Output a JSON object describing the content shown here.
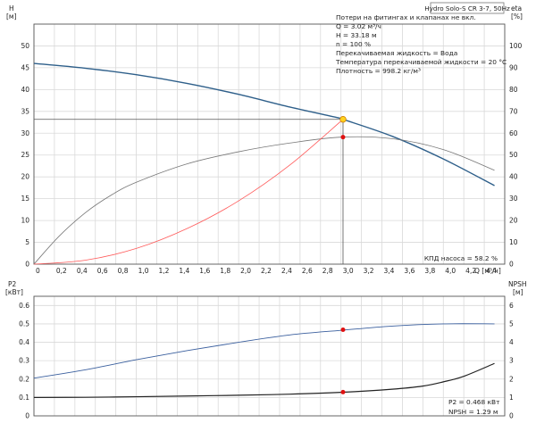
{
  "chart_data": [
    {
      "type": "line",
      "title": "Hydro Solo-S CR 3-7, 50Hz",
      "xlabel": "Q [м³/ч]",
      "ylabel_left": [
        "H",
        "[м]"
      ],
      "ylabel_right": [
        "eta",
        "[%]"
      ],
      "xlim": [
        0,
        4.6
      ],
      "ylim_left": [
        0,
        55
      ],
      "ylim_right": [
        0,
        110
      ],
      "x_ticks": [
        "0",
        "0,2",
        "0,4",
        "0,6",
        "0,8",
        "1,0",
        "1,2",
        "1,4",
        "1,6",
        "1,8",
        "2,0",
        "2,2",
        "2,4",
        "2,6",
        "2,8",
        "3,0",
        "3,2",
        "3,4",
        "3,6",
        "3,8",
        "4,0",
        "4,2",
        "4,4"
      ],
      "y_ticks_left": [
        "0",
        "5",
        "10",
        "15",
        "20",
        "25",
        "30",
        "35",
        "40",
        "45",
        "50"
      ],
      "y_ticks_right": [
        "0",
        "10",
        "20",
        "30",
        "40",
        "50",
        "60",
        "70",
        "80",
        "90",
        "100"
      ],
      "grid": true,
      "series": [
        {
          "role": "H",
          "color": "#2e5f8a",
          "x": [
            0,
            0.5,
            1.0,
            1.5,
            2.0,
            2.5,
            3.0,
            3.02,
            3.5,
            4.0,
            4.5
          ],
          "y": [
            46.0,
            44.9,
            43.4,
            41.4,
            38.9,
            36.0,
            33.4,
            33.18,
            29.3,
            24.1,
            18.0
          ]
        },
        {
          "role": "eta",
          "axis": "right",
          "color": "#777777",
          "x": [
            0,
            0.25,
            0.5,
            0.75,
            1.0,
            1.5,
            2.0,
            2.5,
            3.0,
            3.5,
            4.0,
            4.5
          ],
          "y": [
            0,
            13,
            23.5,
            31.5,
            37.5,
            46,
            51.5,
            55.5,
            58.2,
            57.5,
            52.5,
            43
          ]
        },
        {
          "role": "system",
          "color": "#ff5a5a",
          "x": [
            0,
            0.5,
            1.0,
            1.5,
            2.0,
            2.5,
            3.02
          ],
          "y": [
            0,
            0.9,
            3.6,
            8.2,
            14.5,
            22.7,
            33.18
          ]
        }
      ],
      "duty_point": {
        "x": 3.02,
        "y": 33.18,
        "eta": 58.2
      },
      "info": [
        "Потери на фитингах и клапанах не вкл.",
        "Q = 3.02 м³/ч",
        "H = 33.18 м",
        "n = 100 %",
        "Перекачиваемая жидкость = Вода",
        "Температура перекачиваемой жидкости = 20 °C",
        "Плотность = 998.2 кг/м³"
      ],
      "eff_label": "КПД насоса = 58.2 %"
    },
    {
      "type": "line",
      "xlim": [
        0,
        4.6
      ],
      "ylim_left": [
        0,
        0.65
      ],
      "ylim_right": [
        0,
        6.5
      ],
      "ylabel_left": [
        "P2",
        "[кВт]"
      ],
      "ylabel_right": [
        "NPSH",
        "[м]"
      ],
      "y_ticks_left": [
        "0",
        "0.1",
        "0.2",
        "0.3",
        "0.4",
        "0.5",
        "0.6"
      ],
      "y_ticks_right": [
        "0",
        "1",
        "2",
        "3",
        "4",
        "5",
        "6"
      ],
      "grid": true,
      "series": [
        {
          "role": "P2",
          "color": "#3a5f9e",
          "x": [
            0,
            0.5,
            1.0,
            1.5,
            2.0,
            2.5,
            3.0,
            3.5,
            4.0,
            4.5
          ],
          "y": [
            0.205,
            0.25,
            0.305,
            0.355,
            0.4,
            0.44,
            0.465,
            0.488,
            0.5,
            0.5
          ]
        },
        {
          "role": "NPSH",
          "axis": "right",
          "color": "#222222",
          "x": [
            0,
            0.5,
            1.0,
            1.5,
            2.0,
            2.5,
            3.0,
            3.5,
            3.8,
            4.0,
            4.2,
            4.5
          ],
          "y": [
            1.0,
            1.01,
            1.04,
            1.08,
            1.12,
            1.18,
            1.28,
            1.45,
            1.62,
            1.85,
            2.15,
            2.85
          ]
        }
      ],
      "duty_point": {
        "x": 3.02,
        "p2": 0.468,
        "npsh": 1.29
      },
      "info": [
        "P2 = 0.468 кВт",
        "NPSH = 1.29 м"
      ]
    }
  ]
}
